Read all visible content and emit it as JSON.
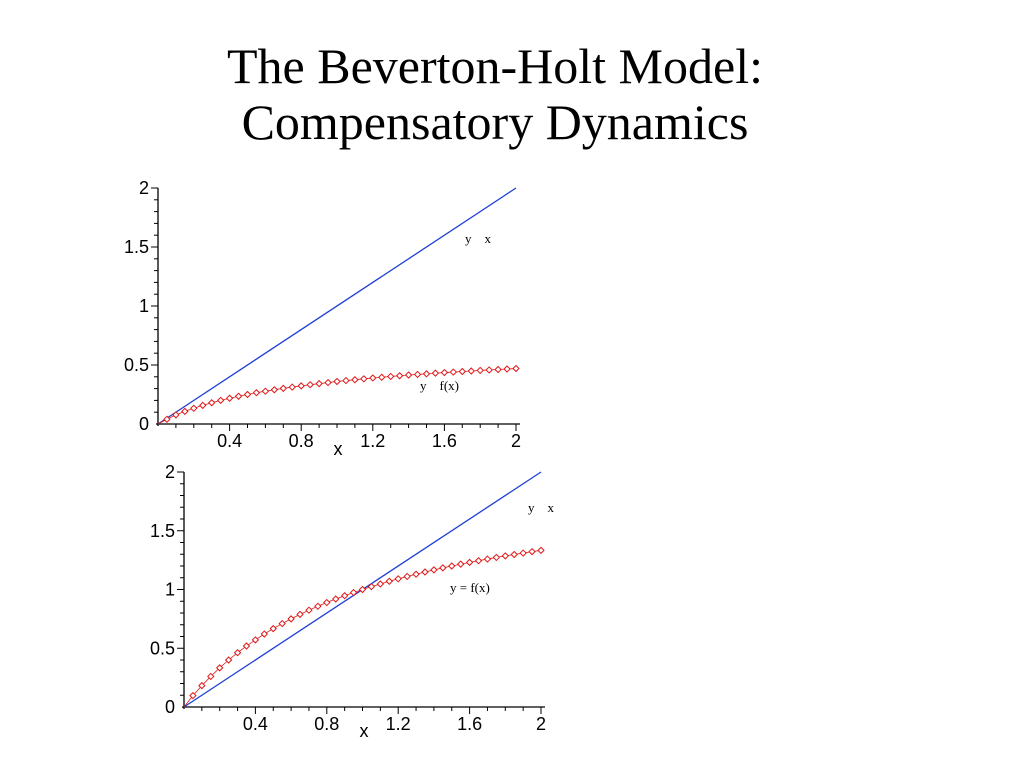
{
  "slide": {
    "title_line1": "The Beverton-Holt Model:",
    "title_line2": "Compensatory Dynamics"
  },
  "colors": {
    "identity_line": "#1f3fd6",
    "model_curve": "#e01818",
    "axis": "#000000"
  },
  "chart_data": [
    {
      "type": "line",
      "xlabel": "x",
      "xlim": [
        0,
        2
      ],
      "ylim": [
        0,
        2
      ],
      "xticks": [
        "0.4",
        "0.8",
        "1.2",
        "1.6",
        "2"
      ],
      "yticks": [
        "0",
        "0.5",
        "1",
        "1.5",
        "2"
      ],
      "annotations": [
        "y    x",
        "y    f(x)"
      ],
      "series": [
        {
          "style": "solid",
          "x": [
            0,
            2
          ],
          "values": [
            0,
            2
          ]
        },
        {
          "style": "diamonds",
          "x": [
            0.05,
            0.1,
            0.15,
            0.2,
            0.25,
            0.3,
            0.35,
            0.4,
            0.45,
            0.5,
            0.55,
            0.6,
            0.65,
            0.7,
            0.75,
            0.8,
            0.85,
            0.9,
            0.95,
            1.0,
            1.05,
            1.1,
            1.15,
            1.2,
            1.25,
            1.3,
            1.35,
            1.4,
            1.45,
            1.5,
            1.55,
            1.6,
            1.65,
            1.7,
            1.75,
            1.8,
            1.85,
            1.9,
            1.95,
            2.0
          ],
          "values": [
            0.04,
            0.077,
            0.107,
            0.133,
            0.158,
            0.18,
            0.2,
            0.218,
            0.235,
            0.25,
            0.265,
            0.278,
            0.29,
            0.302,
            0.313,
            0.323,
            0.333,
            0.342,
            0.351,
            0.36,
            0.368,
            0.375,
            0.383,
            0.39,
            0.396,
            0.403,
            0.409,
            0.415,
            0.42,
            0.425,
            0.431,
            0.436,
            0.44,
            0.445,
            0.449,
            0.454,
            0.458,
            0.462,
            0.466,
            0.47
          ]
        }
      ]
    },
    {
      "type": "line",
      "xlabel": "x",
      "xlim": [
        0,
        2
      ],
      "ylim": [
        0,
        2
      ],
      "xticks": [
        "0.4",
        "0.8",
        "1.2",
        "1.6",
        "2"
      ],
      "yticks": [
        "0",
        "0.5",
        "1",
        "1.5",
        "2"
      ],
      "annotations": [
        "y    x",
        "y = f(x)"
      ],
      "series": [
        {
          "style": "solid",
          "x": [
            0,
            2
          ],
          "values": [
            0,
            2
          ]
        },
        {
          "style": "diamonds",
          "x": [
            0.05,
            0.1,
            0.15,
            0.2,
            0.25,
            0.3,
            0.35,
            0.4,
            0.45,
            0.5,
            0.55,
            0.6,
            0.65,
            0.7,
            0.75,
            0.8,
            0.85,
            0.9,
            0.95,
            1.0,
            1.05,
            1.1,
            1.15,
            1.2,
            1.25,
            1.3,
            1.35,
            1.4,
            1.45,
            1.5,
            1.55,
            1.6,
            1.65,
            1.7,
            1.75,
            1.8,
            1.85,
            1.9,
            1.95,
            2.0
          ],
          "values": [
            0.097,
            0.182,
            0.26,
            0.333,
            0.4,
            0.462,
            0.519,
            0.571,
            0.621,
            0.667,
            0.71,
            0.75,
            0.788,
            0.824,
            0.857,
            0.889,
            0.919,
            0.947,
            0.974,
            1.0,
            1.024,
            1.047,
            1.07,
            1.091,
            1.111,
            1.13,
            1.149,
            1.167,
            1.184,
            1.2,
            1.216,
            1.231,
            1.245,
            1.259,
            1.273,
            1.286,
            1.298,
            1.31,
            1.322,
            1.333
          ]
        }
      ]
    }
  ]
}
